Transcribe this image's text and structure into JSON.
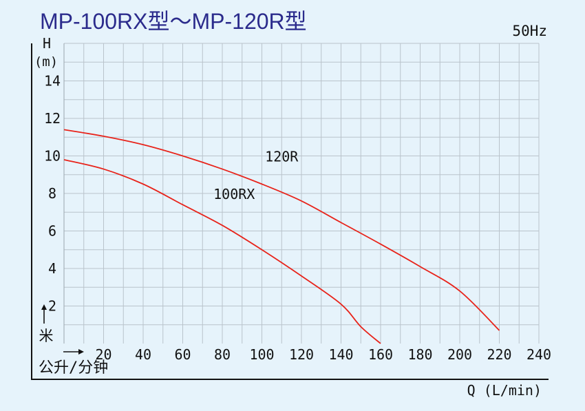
{
  "chart_data": {
    "type": "line",
    "title": "MP-100RX型～MP-120R型",
    "frequency": "50Hz",
    "ylabel_symbol": "H",
    "ylabel_unit": "(m)",
    "ylabel_cn": "米",
    "xlabel": "Q (L/min)",
    "xlabel_cn": "公升/分钟",
    "xlim": [
      0,
      240
    ],
    "ylim": [
      0,
      16
    ],
    "x_ticks": [
      20,
      40,
      60,
      80,
      100,
      120,
      140,
      160,
      180,
      200,
      220,
      240
    ],
    "y_ticks": [
      2,
      4,
      6,
      8,
      10,
      12,
      14
    ],
    "grid": true,
    "line_color": "#e8231a",
    "series": [
      {
        "name": "120R",
        "x": [
          0,
          20,
          40,
          60,
          80,
          100,
          120,
          140,
          160,
          180,
          200,
          220
        ],
        "y": [
          11.4,
          11.05,
          10.6,
          10.0,
          9.3,
          8.5,
          7.6,
          6.45,
          5.3,
          4.1,
          2.8,
          0.7
        ]
      },
      {
        "name": "100RX",
        "x": [
          0,
          20,
          40,
          60,
          80,
          100,
          120,
          140,
          150,
          160
        ],
        "y": [
          9.8,
          9.3,
          8.5,
          7.4,
          6.3,
          5.0,
          3.6,
          2.1,
          0.9,
          0.0
        ]
      }
    ]
  }
}
